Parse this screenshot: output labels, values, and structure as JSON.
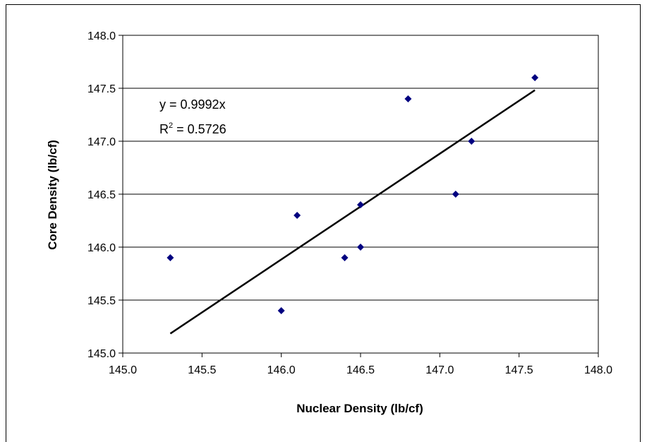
{
  "chart_data": {
    "type": "scatter",
    "title": "",
    "xlabel": "Nuclear Density (lb/cf)",
    "ylabel": "Core Density (lb/cf)",
    "xlim": [
      145.0,
      148.0
    ],
    "ylim": [
      145.0,
      148.0
    ],
    "x_ticks": [
      "145.0",
      "145.5",
      "146.0",
      "146.5",
      "147.0",
      "147.5",
      "148.0"
    ],
    "y_ticks": [
      "145.0",
      "145.5",
      "146.0",
      "146.5",
      "147.0",
      "147.5",
      "148.0"
    ],
    "grid": "horizontal",
    "legend": "none",
    "marker_color": "#000080",
    "series": [
      {
        "points": [
          {
            "x": 145.3,
            "y": 145.9
          },
          {
            "x": 146.0,
            "y": 145.4
          },
          {
            "x": 146.1,
            "y": 146.3
          },
          {
            "x": 146.4,
            "y": 145.9
          },
          {
            "x": 146.5,
            "y": 146.4
          },
          {
            "x": 146.5,
            "y": 146.0
          },
          {
            "x": 146.8,
            "y": 147.4
          },
          {
            "x": 147.1,
            "y": 146.5
          },
          {
            "x": 147.2,
            "y": 147.0
          },
          {
            "x": 147.6,
            "y": 147.6
          }
        ]
      }
    ],
    "trendline": {
      "slope": 0.9992,
      "x_range": [
        145.3,
        147.6
      ],
      "equation_text": "y = 0.9992x",
      "r2_prefix": "R",
      "r2_sup": "2",
      "r2_suffix": " = 0.5726"
    }
  }
}
